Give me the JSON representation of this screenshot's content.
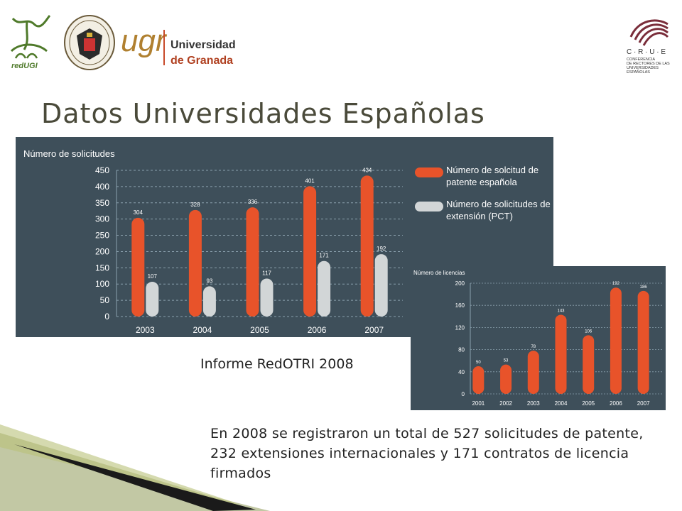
{
  "header": {
    "title": "Datos Universidades Españolas",
    "logos": {
      "redugi": "redUGI",
      "ugr": "ugr",
      "ugr_name_line1": "Universidad",
      "ugr_name_line2": "de Granada",
      "crue": "C · R · U · E",
      "crue_line1": "CONFERENCIA",
      "crue_line2": "DE RECTORES DE LAS",
      "crue_line3": "UNIVERSIDADES",
      "crue_line4": "ESPAÑOLAS"
    }
  },
  "colors": {
    "orange": "#e8532a",
    "grey": "#d2d6d7",
    "panel": "#3e4f5a"
  },
  "chart_data": [
    {
      "type": "bar",
      "ylabel": "Número de solicitudes",
      "categories": [
        "2003",
        "2004",
        "2005",
        "2006",
        "2007"
      ],
      "ylim": [
        0,
        450
      ],
      "yticks": [
        0,
        50,
        100,
        150,
        200,
        250,
        300,
        350,
        400,
        450
      ],
      "series": [
        {
          "name": "Número de solcitud de patente española",
          "values": [
            304,
            328,
            336,
            401,
            434
          ]
        },
        {
          "name": "Número de solicitudes de extensión (PCT)",
          "values": [
            107,
            93,
            117,
            171,
            192
          ]
        }
      ],
      "legend": "right",
      "grid": true
    },
    {
      "type": "bar",
      "ylabel": "Número de licencias",
      "categories": [
        "2001",
        "2002",
        "2003",
        "2004",
        "2005",
        "2006",
        "2007"
      ],
      "ylim": [
        0,
        200
      ],
      "yticks": [
        0,
        40,
        80,
        120,
        160,
        200
      ],
      "values": [
        50,
        53,
        78,
        143,
        106,
        192,
        186
      ],
      "grid": true
    }
  ],
  "source": "Informe RedOTRI 2008",
  "summary": "En 2008 se registraron un total de 527 solicitudes de patente, 232 extensiones internacionales y 171 contratos de licencia firmados"
}
